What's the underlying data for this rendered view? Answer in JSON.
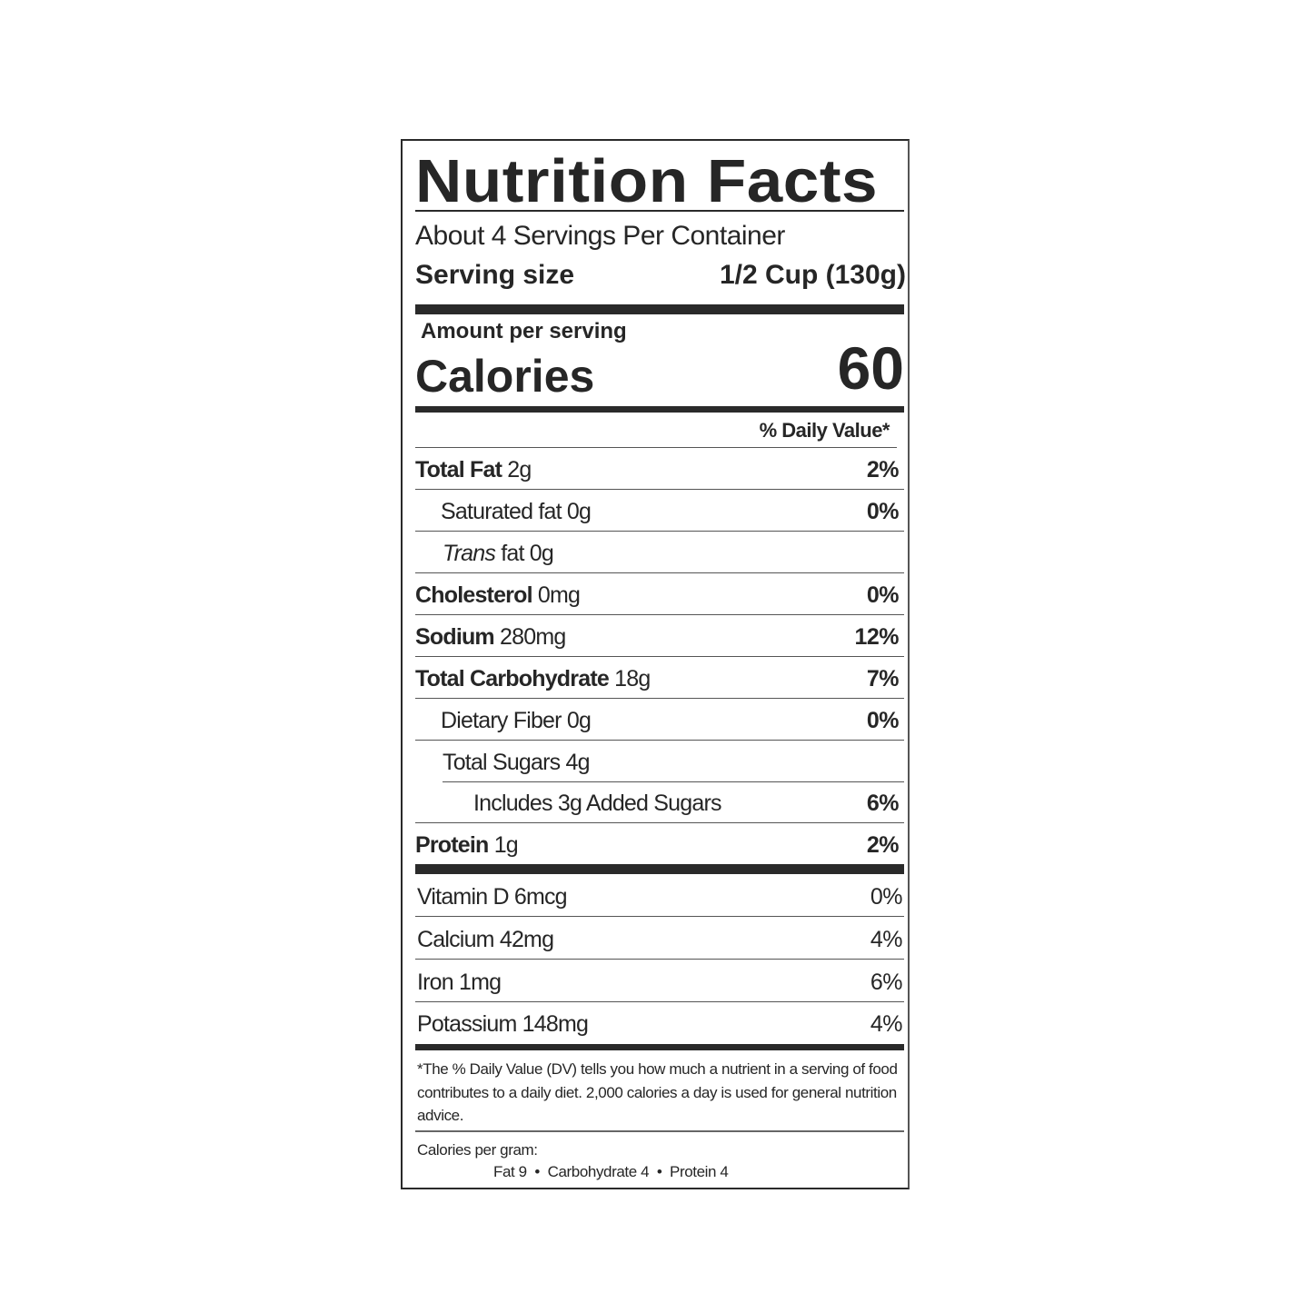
{
  "title": "Nutrition Facts",
  "servings_per_container": "About 4 Servings Per Container",
  "serving_size_label": "Serving size",
  "serving_size_value": "1/2 Cup (130g)",
  "amount_per_serving": "Amount per serving",
  "calories_label": "Calories",
  "calories_value": "60",
  "daily_value_header": "% Daily Value*",
  "nutrients": [
    {
      "name": "Total Fat",
      "amount": "2g",
      "dv": "2%"
    },
    {
      "name": "Saturated fat",
      "amount": "0g",
      "dv": "0%"
    },
    {
      "name": "Trans",
      "name_suffix": "fat",
      "amount": "0g",
      "dv": ""
    },
    {
      "name": "Cholesterol",
      "amount": "0mg",
      "dv": "0%"
    },
    {
      "name": "Sodium",
      "amount": "280mg",
      "dv": "12%"
    },
    {
      "name": "Total Carbohydrate",
      "amount": "18g",
      "dv": "7%"
    },
    {
      "name": "Dietary Fiber",
      "amount": "0g",
      "dv": "0%"
    },
    {
      "name": "Total Sugars",
      "amount": "4g",
      "dv": ""
    },
    {
      "name": "Includes 3g Added Sugars",
      "amount": "",
      "dv": "6%"
    },
    {
      "name": "Protein",
      "amount": "1g",
      "dv": "2%"
    }
  ],
  "vitamins": [
    {
      "name": "Vitamin D 6mcg",
      "dv": "0%"
    },
    {
      "name": "Calcium 42mg",
      "dv": "4%"
    },
    {
      "name": "Iron 1mg",
      "dv": "6%"
    },
    {
      "name": "Potassium 148mg",
      "dv": "4%"
    }
  ],
  "footnote": "*The % Daily Value (DV) tells you how much a nutrient in a serving of food contributes to a daily diet. 2,000 calories a day is used for general nutrition advice.",
  "calories_per_gram_label": "Calories per gram:",
  "calories_per_gram": "Fat 9  •  Carbohydrate 4  •  Protein 4"
}
